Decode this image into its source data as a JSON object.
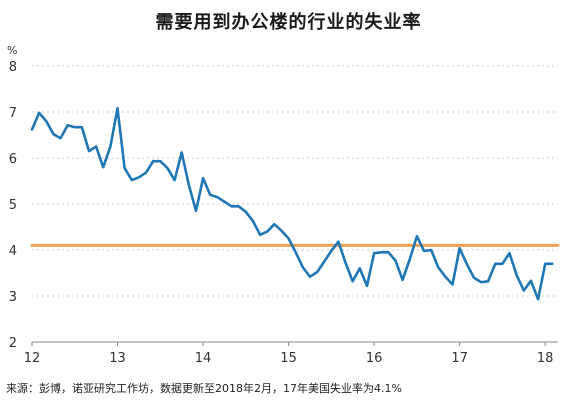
{
  "chart_data": {
    "type": "line",
    "title": "需要用到办公楼的行业的失业率",
    "ylabel": "%",
    "ylim": [
      2,
      8
    ],
    "yticks": [
      2,
      3,
      4,
      5,
      6,
      7,
      8
    ],
    "xlim": [
      2012,
      2018.15
    ],
    "xticks": [
      {
        "value": 2012,
        "label": "12"
      },
      {
        "value": 2013,
        "label": "13"
      },
      {
        "value": 2014,
        "label": "14"
      },
      {
        "value": 2015,
        "label": "15"
      },
      {
        "value": 2016,
        "label": "16"
      },
      {
        "value": 2017,
        "label": "17"
      },
      {
        "value": 2018,
        "label": "18"
      }
    ],
    "grid": true,
    "series": [
      {
        "color": "#1f77b4",
        "x": [
          2012.0,
          2012.083,
          2012.167,
          2012.25,
          2012.333,
          2012.417,
          2012.5,
          2012.583,
          2012.667,
          2012.75,
          2012.833,
          2012.917,
          2013.0,
          2013.083,
          2013.167,
          2013.25,
          2013.333,
          2013.417,
          2013.5,
          2013.583,
          2013.667,
          2013.75,
          2013.833,
          2013.917,
          2014.0,
          2014.083,
          2014.167,
          2014.25,
          2014.333,
          2014.417,
          2014.5,
          2014.583,
          2014.667,
          2014.75,
          2014.833,
          2014.917,
          2015.0,
          2015.083,
          2015.167,
          2015.25,
          2015.333,
          2015.417,
          2015.5,
          2015.583,
          2015.667,
          2015.75,
          2015.833,
          2015.917,
          2016.0,
          2016.083,
          2016.167,
          2016.25,
          2016.333,
          2016.417,
          2016.5,
          2016.583,
          2016.667,
          2016.75,
          2016.833,
          2016.917,
          2017.0,
          2017.083,
          2017.167,
          2017.25,
          2017.333,
          2017.417,
          2017.5,
          2017.583,
          2017.667,
          2017.75,
          2017.833,
          2017.917,
          2018.0,
          2018.083
        ],
        "values": [
          6.62,
          6.98,
          6.8,
          6.52,
          6.43,
          6.71,
          6.67,
          6.67,
          6.15,
          6.25,
          5.8,
          6.25,
          7.08,
          5.78,
          5.52,
          5.58,
          5.68,
          5.93,
          5.93,
          5.78,
          5.52,
          6.12,
          5.42,
          4.85,
          5.56,
          5.2,
          5.15,
          5.05,
          4.95,
          4.95,
          4.83,
          4.63,
          4.33,
          4.4,
          4.56,
          4.42,
          4.25,
          3.95,
          3.62,
          3.42,
          3.52,
          3.75,
          3.98,
          4.18,
          3.72,
          3.32,
          3.6,
          3.22,
          3.93,
          3.95,
          3.95,
          3.77,
          3.35,
          3.8,
          4.3,
          3.98,
          4.0,
          3.62,
          3.42,
          3.25,
          4.04,
          3.7,
          3.4,
          3.3,
          3.32,
          3.7,
          3.7,
          3.93,
          3.45,
          3.12,
          3.33,
          2.93,
          3.7,
          3.7
        ]
      },
      {
        "color": "#f5a050",
        "x": [
          2012.0,
          2018.15
        ],
        "values": [
          4.1,
          4.1
        ]
      }
    ]
  },
  "source": "来源：彭博，诺亚研究工作坊，数据更新至2018年2月，17年美国失业率为4.1%"
}
